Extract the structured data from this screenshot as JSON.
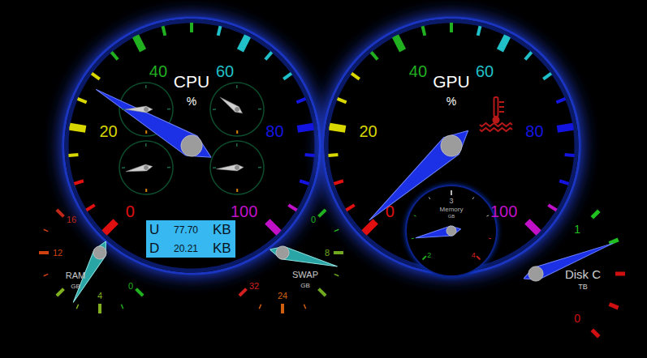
{
  "chart_data": [
    {
      "type": "gauge",
      "title": "CPU",
      "unit": "%",
      "ylim": [
        0,
        100
      ],
      "yticks": [
        0,
        20,
        40,
        60,
        80,
        100
      ],
      "colors": [
        "#e01010",
        "#d8d800",
        "#20b020",
        "#20c0c8",
        "#1414e0",
        "#c010c8"
      ],
      "values": [
        28
      ],
      "cores": {
        "type": "gauge",
        "ylim": [
          0,
          100
        ],
        "values": [
          25,
          35,
          22,
          24
        ]
      },
      "network": [
        {
          "label": "U",
          "value": "77.70",
          "unit": "KB"
        },
        {
          "label": "D",
          "value": "20.21",
          "unit": "KB"
        }
      ]
    },
    {
      "type": "gauge",
      "title": "GPU",
      "unit": "%",
      "ylim": [
        0,
        100
      ],
      "yticks": [
        0,
        20,
        40,
        60,
        80,
        100
      ],
      "colors": [
        "#e01010",
        "#d8d800",
        "#20b020",
        "#20c0c8",
        "#1414e0",
        "#c010c8"
      ],
      "values": [
        1
      ],
      "memory": {
        "type": "gauge",
        "title": "Memory",
        "unit": "GB",
        "ylim": [
          2,
          4
        ],
        "yticks": [
          2,
          3,
          4
        ],
        "colors": [
          "#20b020",
          "#b8b8b8",
          "#d02020"
        ],
        "values": [
          2.25
        ]
      }
    },
    {
      "type": "gauge",
      "title": "RAM",
      "unit": "GB",
      "ylim": [
        0,
        16
      ],
      "yticks": [
        0,
        4,
        12,
        16
      ],
      "colors": [
        "#20b020",
        "#80b020",
        "#d04010",
        "#c02818"
      ],
      "values": [
        6.5
      ]
    },
    {
      "type": "gauge",
      "title": "SWAP",
      "unit": "GB",
      "ylim": [
        0,
        32
      ],
      "yticks": [
        0,
        8,
        24,
        32
      ],
      "colors": [
        "#20b020",
        "#70a820",
        "#d06010",
        "#d02020"
      ],
      "values": [
        10.5
      ]
    },
    {
      "type": "gauge",
      "title": "Disk C",
      "unit": "TB",
      "ylim": [
        0,
        1
      ],
      "yticks": [
        0,
        1
      ],
      "colors": [
        "#d01010",
        "#20c020"
      ],
      "values": [
        0.74
      ]
    }
  ]
}
